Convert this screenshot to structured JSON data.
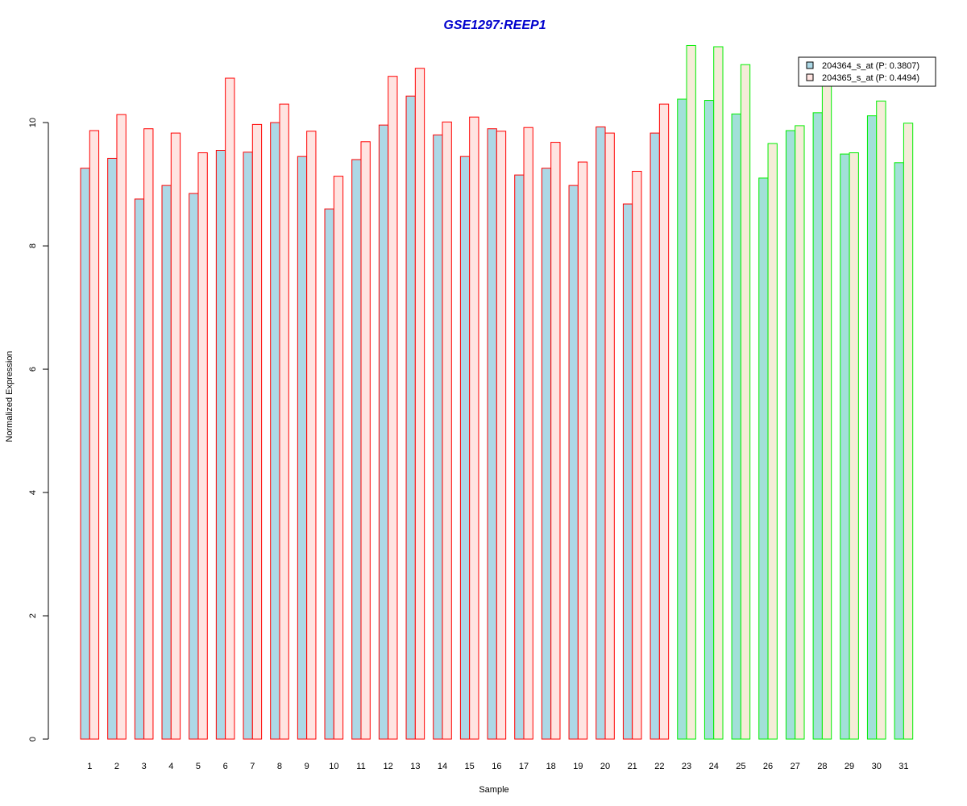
{
  "chart_data": {
    "type": "bar",
    "title": "GSE1297:REEP1",
    "xlabel": "Sample",
    "ylabel": "Normalized Expression",
    "ylim": [
      0,
      11.4
    ],
    "yticks": [
      0,
      2,
      4,
      6,
      8,
      10
    ],
    "grid": false,
    "legend_position": "top-right",
    "categories": [
      "1",
      "2",
      "3",
      "4",
      "5",
      "6",
      "7",
      "8",
      "9",
      "10",
      "11",
      "12",
      "13",
      "14",
      "15",
      "16",
      "17",
      "18",
      "19",
      "20",
      "21",
      "22",
      "23",
      "24",
      "25",
      "26",
      "27",
      "28",
      "29",
      "30",
      "31"
    ],
    "groups": [
      {
        "range": [
          1,
          22
        ],
        "border_color": "#ff0000",
        "fills": [
          "#add8e6",
          "#ffe4e1"
        ]
      },
      {
        "range": [
          23,
          31
        ],
        "border_color": "#00ee00",
        "fills": [
          "#a2e0d8",
          "#f5ecd8"
        ]
      }
    ],
    "series": [
      {
        "name": "204364_s_at (P: 0.3807)",
        "color": "#add8e6",
        "values": [
          9.26,
          9.42,
          8.76,
          8.98,
          8.85,
          9.55,
          9.52,
          10.0,
          9.45,
          8.6,
          9.4,
          9.96,
          10.43,
          9.8,
          9.45,
          9.9,
          9.15,
          9.26,
          8.98,
          9.93,
          8.68,
          9.83,
          10.38,
          10.36,
          10.14,
          9.1,
          9.87,
          10.16,
          9.49,
          10.11,
          9.35
        ]
      },
      {
        "name": "204365_s_at (P: 0.4494)",
        "color": "#ffe4e1",
        "values": [
          9.87,
          10.13,
          9.9,
          9.83,
          9.51,
          10.72,
          9.97,
          10.3,
          9.86,
          9.13,
          9.69,
          10.75,
          10.88,
          10.01,
          10.09,
          9.86,
          9.92,
          9.68,
          9.36,
          9.83,
          9.21,
          10.3,
          11.25,
          11.23,
          10.94,
          9.66,
          9.95,
          10.66,
          9.51,
          10.35,
          9.99
        ]
      }
    ]
  }
}
